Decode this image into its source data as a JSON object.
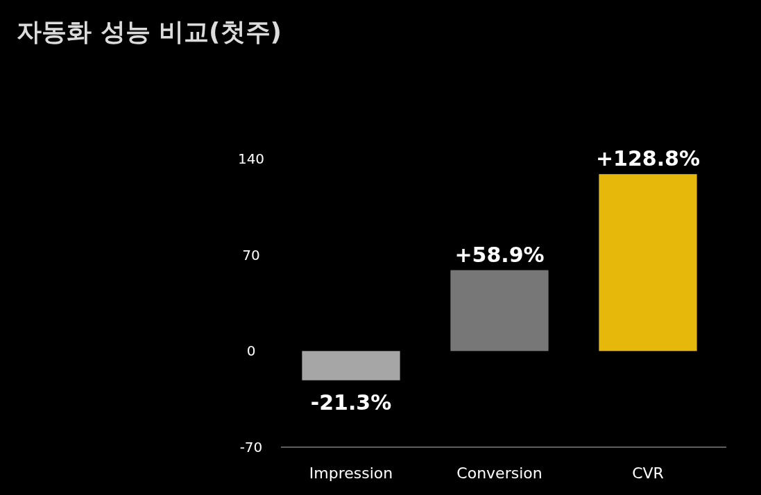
{
  "chart_data": {
    "type": "bar",
    "title": "자동화 성능 비교(첫주)",
    "categories": [
      "Impression",
      "Conversion",
      "CVR"
    ],
    "values": [
      -21.3,
      58.9,
      128.8
    ],
    "colors": [
      "#a6a6a6",
      "#777777",
      "#e6b80c"
    ],
    "value_labels": [
      "-21.3%",
      "+58.9%",
      "+128.8%"
    ],
    "ylim": [
      -70,
      140
    ],
    "yticks": [
      -70,
      0,
      70,
      140
    ]
  }
}
